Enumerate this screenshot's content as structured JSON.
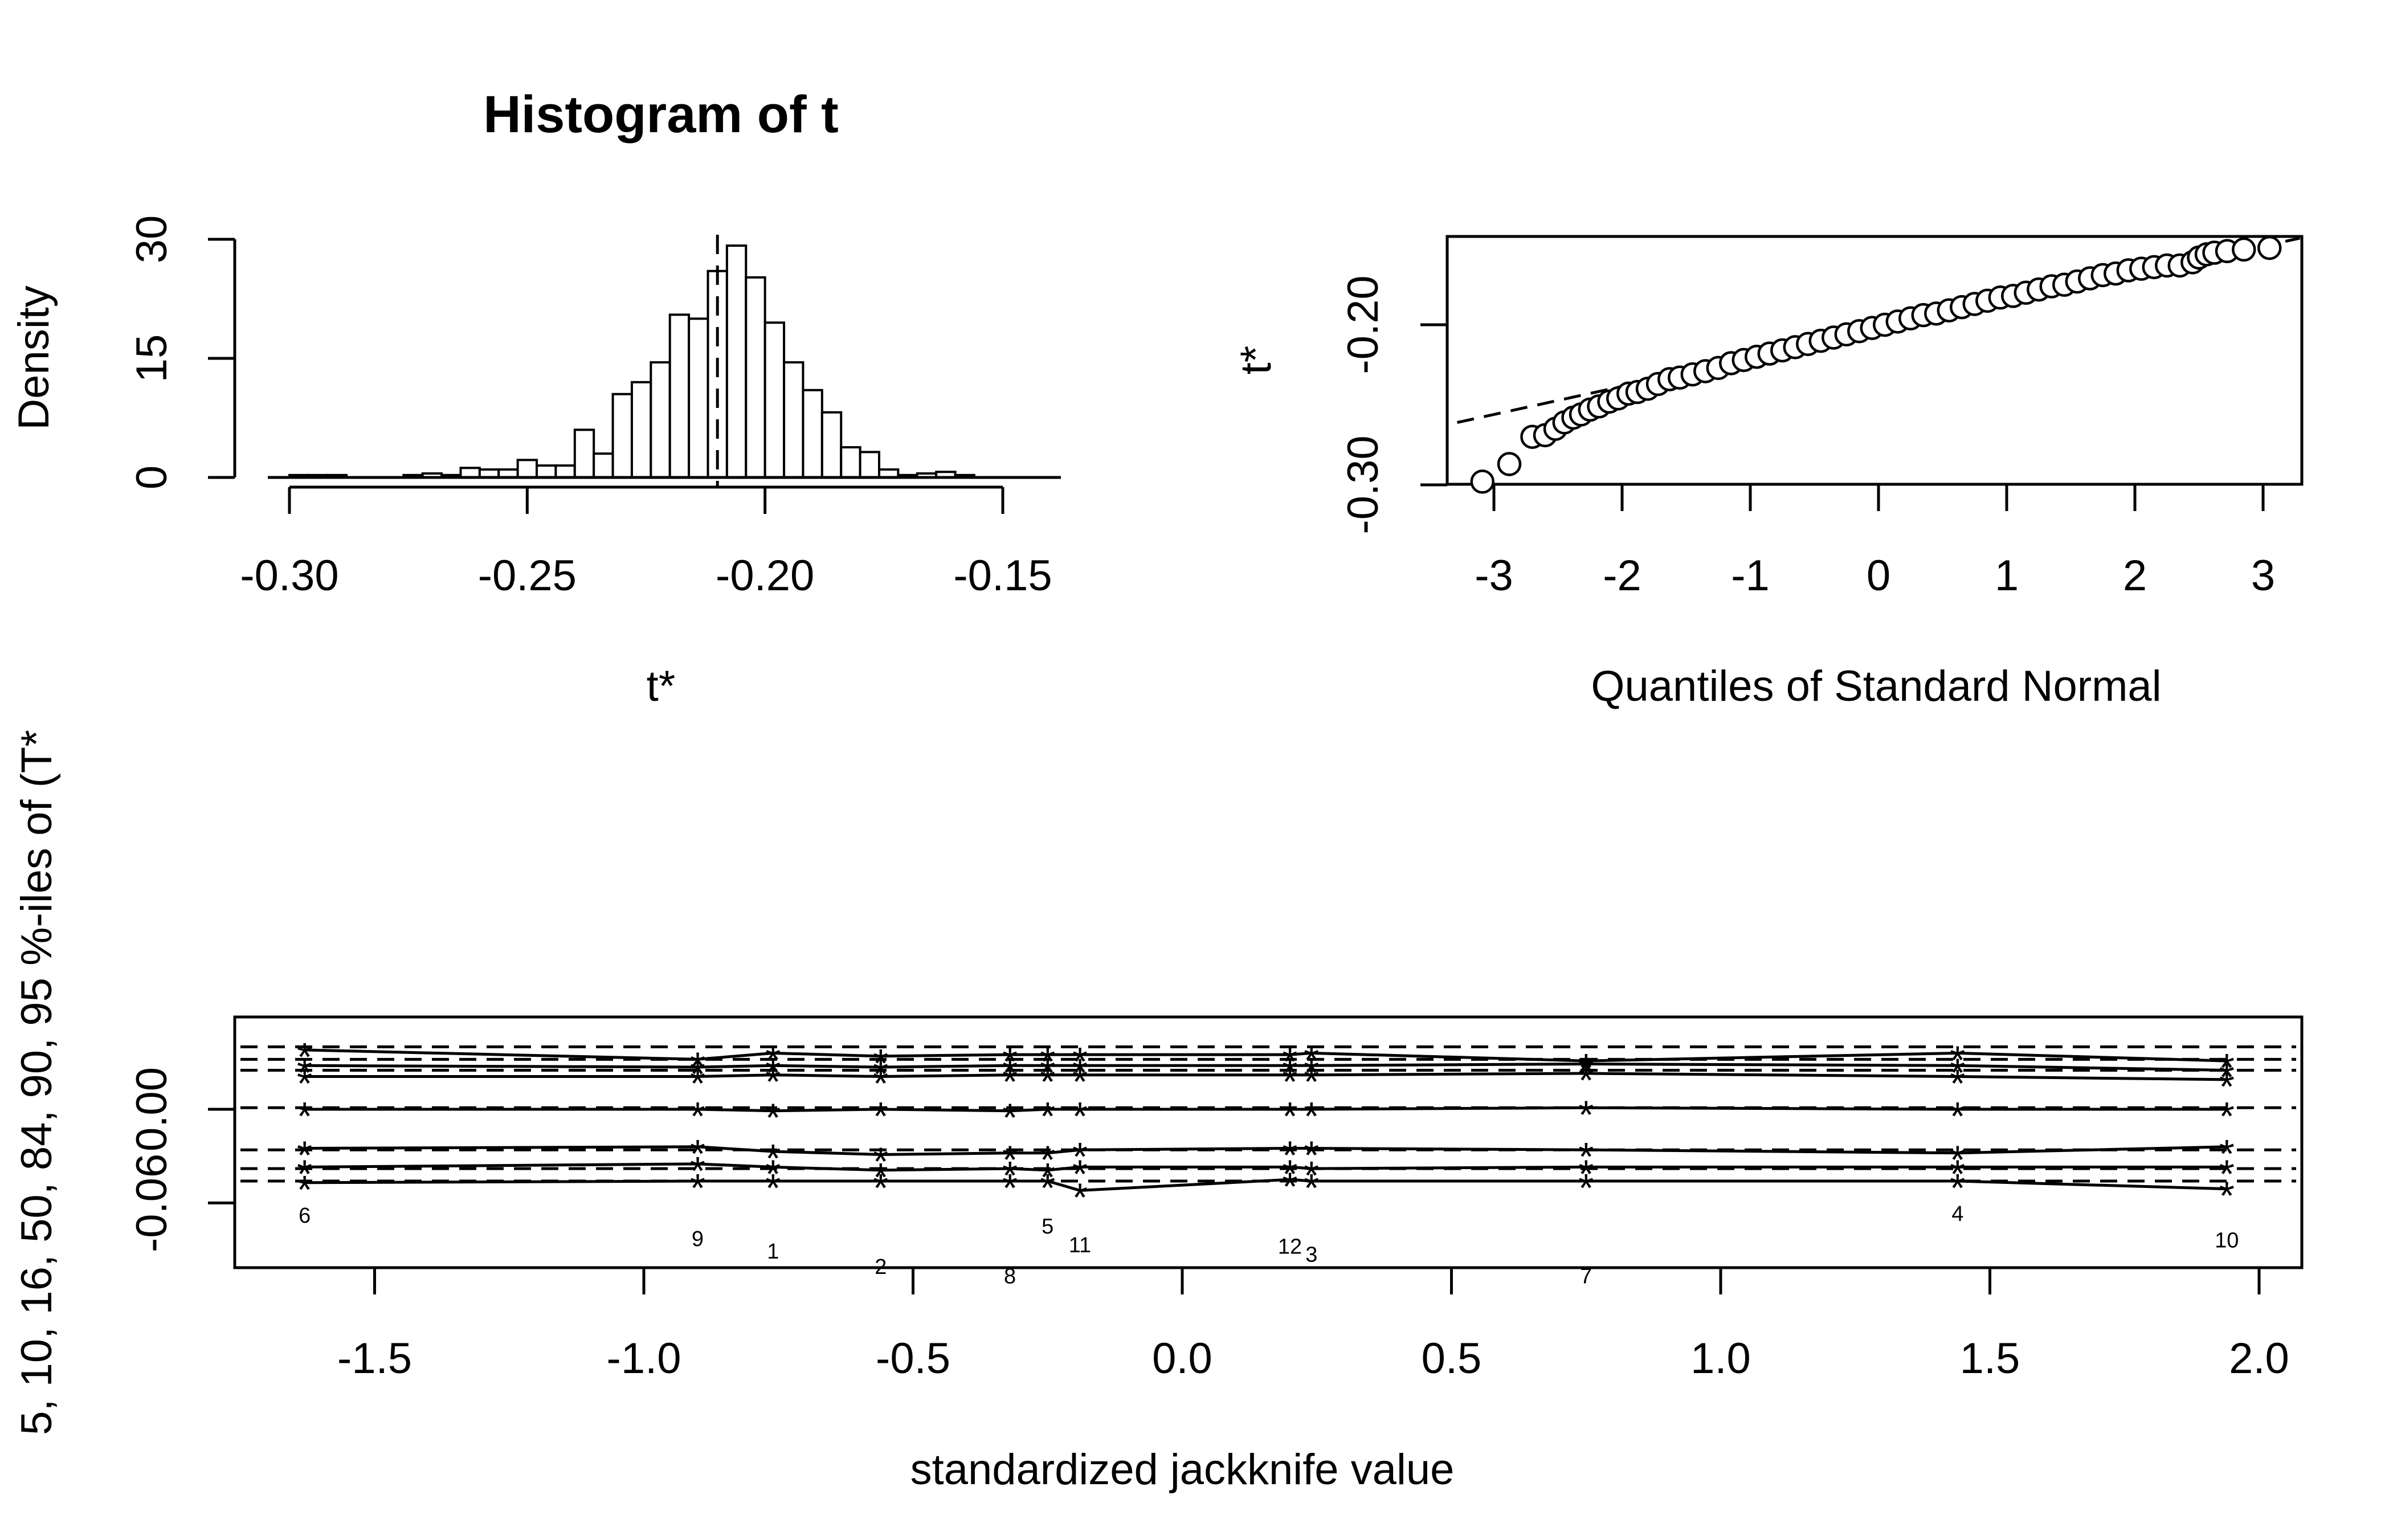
{
  "chart_data": [
    {
      "type": "bar",
      "title": "Histogram of t",
      "xlabel": "t*",
      "ylabel": "Density",
      "xlim": [
        -0.3,
        -0.14
      ],
      "ylim": [
        0,
        30
      ],
      "x_ticks": [
        "-0.30",
        "-0.25",
        "-0.20",
        "-0.15"
      ],
      "y_ticks": [
        "0",
        "15",
        "30"
      ],
      "bin_width": 0.004,
      "bin_starts": [
        -0.3,
        -0.296,
        -0.292,
        -0.288,
        -0.284,
        -0.28,
        -0.276,
        -0.272,
        -0.268,
        -0.264,
        -0.26,
        -0.256,
        -0.252,
        -0.248,
        -0.244,
        -0.24,
        -0.236,
        -0.232,
        -0.228,
        -0.224,
        -0.22,
        -0.216,
        -0.212,
        -0.208,
        -0.204,
        -0.2,
        -0.196,
        -0.192,
        -0.188,
        -0.184,
        -0.18,
        -0.176,
        -0.172,
        -0.168,
        -0.164,
        -0.16,
        -0.156,
        -0.152
      ],
      "density": [
        0.3,
        0.3,
        0.3,
        0,
        0,
        0,
        0.3,
        0.5,
        0.3,
        1.2,
        1,
        1,
        2.2,
        1.5,
        1.5,
        6,
        3,
        10.5,
        12,
        14.5,
        20.5,
        20,
        26,
        29.2,
        25.2,
        19.5,
        14.5,
        11,
        8.2,
        3.8,
        3.2,
        1,
        0.3,
        0.5,
        0.7,
        0.3,
        0,
        0
      ],
      "reference_line_x": -0.21
    },
    {
      "type": "scatter",
      "xlabel": "Quantiles of Standard Normal",
      "ylabel": "t*",
      "xlim": [
        -3.3,
        3.3
      ],
      "ylim": [
        -0.3,
        -0.15
      ],
      "x_ticks": [
        "-3",
        "-2",
        "-1",
        "0",
        "1",
        "2",
        "3"
      ],
      "y_ticks": [
        "-0.30",
        "-0.20"
      ],
      "reference_line": {
        "intercept": -0.2,
        "slope": 0.0185
      },
      "points": [
        [
          -3.09,
          -0.298
        ],
        [
          -2.88,
          -0.287
        ],
        [
          -2.7,
          -0.27
        ],
        [
          -2.6,
          -0.269
        ],
        [
          -2.52,
          -0.265
        ],
        [
          -2.45,
          -0.261
        ],
        [
          -2.38,
          -0.258
        ],
        [
          -2.32,
          -0.256
        ],
        [
          -2.25,
          -0.253
        ],
        [
          -2.18,
          -0.251
        ],
        [
          -2.1,
          -0.248
        ],
        [
          -2.03,
          -0.246
        ],
        [
          -1.95,
          -0.243
        ],
        [
          -1.88,
          -0.242
        ],
        [
          -1.8,
          -0.24
        ],
        [
          -1.72,
          -0.237
        ],
        [
          -1.63,
          -0.234
        ],
        [
          -1.55,
          -0.233
        ],
        [
          -1.45,
          -0.231
        ],
        [
          -1.35,
          -0.229
        ],
        [
          -1.25,
          -0.227
        ],
        [
          -1.15,
          -0.224
        ],
        [
          -1.05,
          -0.222
        ],
        [
          -0.95,
          -0.22
        ],
        [
          -0.85,
          -0.218
        ],
        [
          -0.75,
          -0.216
        ],
        [
          -0.65,
          -0.214
        ],
        [
          -0.55,
          -0.212
        ],
        [
          -0.45,
          -0.21
        ],
        [
          -0.35,
          -0.208
        ],
        [
          -0.25,
          -0.206
        ],
        [
          -0.15,
          -0.204
        ],
        [
          -0.05,
          -0.202
        ],
        [
          0.05,
          -0.2
        ],
        [
          0.15,
          -0.198
        ],
        [
          0.25,
          -0.196
        ],
        [
          0.35,
          -0.194
        ],
        [
          0.45,
          -0.193
        ],
        [
          0.55,
          -0.191
        ],
        [
          0.65,
          -0.189
        ],
        [
          0.75,
          -0.187
        ],
        [
          0.85,
          -0.185
        ],
        [
          0.95,
          -0.183
        ],
        [
          1.05,
          -0.182
        ],
        [
          1.15,
          -0.18
        ],
        [
          1.25,
          -0.178
        ],
        [
          1.35,
          -0.176
        ],
        [
          1.45,
          -0.175
        ],
        [
          1.55,
          -0.173
        ],
        [
          1.65,
          -0.171
        ],
        [
          1.75,
          -0.169
        ],
        [
          1.85,
          -0.168
        ],
        [
          1.95,
          -0.166
        ],
        [
          2.05,
          -0.165
        ],
        [
          2.15,
          -0.164
        ],
        [
          2.25,
          -0.163
        ],
        [
          2.35,
          -0.163
        ],
        [
          2.45,
          -0.161
        ],
        [
          2.5,
          -0.158
        ],
        [
          2.56,
          -0.156
        ],
        [
          2.62,
          -0.155
        ],
        [
          2.72,
          -0.154
        ],
        [
          2.85,
          -0.153
        ],
        [
          3.05,
          -0.152
        ]
      ]
    },
    {
      "type": "line",
      "xlabel": "standardized jackknife value",
      "ylabel": "5, 10, 16, 50, 84, 90, 95 %-iles of (T*",
      "xlim": [
        -1.8,
        2.08
      ],
      "ylim": [
        -0.073,
        0.073
      ],
      "x_ticks": [
        "-1.5",
        "-1.0",
        "-0.5",
        "0.0",
        "0.5",
        "1.0",
        "1.5",
        "2.0"
      ],
      "y_ticks": [
        "-0.06",
        "0.00"
      ],
      "reference_levels": [
        -0.046,
        -0.038,
        -0.026,
        0.001,
        0.025,
        0.032,
        0.04
      ],
      "jackknife_x": [
        -1.63,
        -0.9,
        -0.76,
        -0.56,
        -0.32,
        -0.25,
        -0.19,
        0.2,
        0.24,
        0.75,
        1.44,
        1.94
      ],
      "point_labels": [
        "6",
        "9",
        "1",
        "2",
        "8",
        "5",
        "11",
        "12",
        "3",
        "7",
        "4",
        "10"
      ],
      "percentile_series": [
        {
          "values": [
            -0.047,
            -0.046,
            -0.046,
            -0.046,
            -0.046,
            -0.046,
            -0.052,
            -0.045,
            -0.046,
            -0.046,
            -0.046,
            -0.051
          ]
        },
        {
          "values": [
            -0.037,
            -0.035,
            -0.037,
            -0.039,
            -0.038,
            -0.039,
            -0.037,
            -0.037,
            -0.038,
            -0.037,
            -0.037,
            -0.037
          ]
        },
        {
          "values": [
            -0.025,
            -0.024,
            -0.027,
            -0.029,
            -0.028,
            -0.028,
            -0.026,
            -0.025,
            -0.025,
            -0.026,
            -0.028,
            -0.024
          ]
        },
        {
          "values": [
            0.0,
            0.0,
            -0.001,
            0.0,
            -0.001,
            0.0,
            0.0,
            0.0,
            0.0,
            0.001,
            0.0,
            0.0
          ]
        },
        {
          "values": [
            0.021,
            0.021,
            0.022,
            0.021,
            0.022,
            0.022,
            0.022,
            0.022,
            0.022,
            0.023,
            0.021,
            0.019
          ]
        },
        {
          "values": [
            0.028,
            0.027,
            0.028,
            0.027,
            0.028,
            0.028,
            0.028,
            0.028,
            0.028,
            0.029,
            0.028,
            0.025
          ]
        },
        {
          "values": [
            0.038,
            0.032,
            0.036,
            0.034,
            0.035,
            0.035,
            0.035,
            0.035,
            0.036,
            0.031,
            0.036,
            0.031
          ]
        }
      ]
    }
  ]
}
